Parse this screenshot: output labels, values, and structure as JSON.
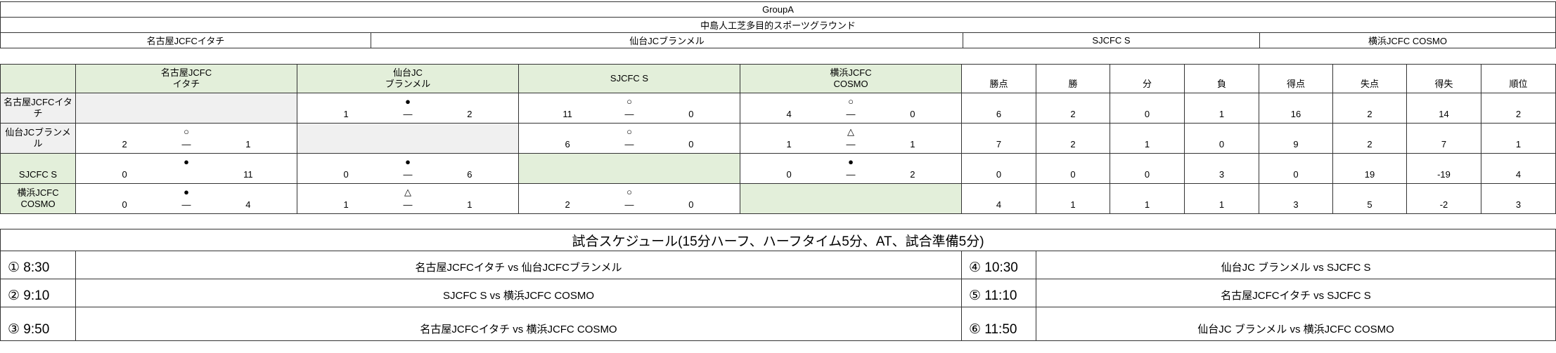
{
  "group": "GroupA",
  "venue": "中島人工芝多目的スポーツグラウンド",
  "teams_header": [
    "名古屋JCFCイタチ",
    "仙台JCブランメル",
    "SJCFC S",
    "横浜JCFC COSMO"
  ],
  "grid": {
    "col_teams": [
      [
        "名古屋JCFC",
        "イタチ"
      ],
      [
        "仙台JC",
        "ブランメル"
      ],
      [
        "",
        "SJCFC S"
      ],
      [
        "横浜JCFC",
        "COSMO"
      ]
    ],
    "stat_headers": [
      "勝点",
      "勝",
      "分",
      "負",
      "得点",
      "失点",
      "得失",
      "順位"
    ],
    "rows": [
      {
        "name": "名古屋JCFCイタチ",
        "results": [
          null,
          {
            "l": "1",
            "m": "●",
            "d": "—",
            "r": "2"
          },
          {
            "l": "11",
            "m": "○",
            "d": "—",
            "r": "0"
          },
          {
            "l": "4",
            "m": "○",
            "d": "—",
            "r": "0"
          }
        ],
        "stats": [
          "6",
          "2",
          "0",
          "1",
          "16",
          "2",
          "14",
          "2"
        ]
      },
      {
        "name": "仙台JCブランメル",
        "results": [
          {
            "l": "2",
            "m": "○",
            "d": "—",
            "r": "1"
          },
          null,
          {
            "l": "6",
            "m": "○",
            "d": "—",
            "r": "0"
          },
          {
            "l": "1",
            "m": "△",
            "d": "—",
            "r": "1"
          }
        ],
        "stats": [
          "7",
          "2",
          "1",
          "0",
          "9",
          "2",
          "7",
          "1"
        ]
      },
      {
        "name": "SJCFC S",
        "results": [
          {
            "l": "0",
            "m": "●",
            "d": "",
            "r": "11"
          },
          {
            "l": "0",
            "m": "●",
            "d": "—",
            "r": "6"
          },
          null,
          {
            "l": "0",
            "m": "●",
            "d": "—",
            "r": "2"
          }
        ],
        "stats": [
          "0",
          "0",
          "0",
          "3",
          "0",
          "19",
          "-19",
          "4"
        ]
      },
      {
        "name": "横浜JCFC COSMO",
        "results": [
          {
            "l": "0",
            "m": "●",
            "d": "—",
            "r": "4"
          },
          {
            "l": "1",
            "m": "△",
            "d": "—",
            "r": "1"
          },
          {
            "l": "2",
            "m": "○",
            "d": "—",
            "r": "0"
          },
          null
        ],
        "stats": [
          "4",
          "1",
          "1",
          "1",
          "3",
          "5",
          "-2",
          "3"
        ]
      }
    ]
  },
  "schedule": {
    "title": "試合スケジュール(15分ハーフ、ハーフタイム5分、AT、試合準備5分)",
    "rows": [
      {
        "t1": "① 8:30",
        "m1": "名古屋JCFCイタチ vs 仙台JCFCブランメル",
        "t2": "④ 10:30",
        "m2": "仙台JC ブランメル vs SJCFC S"
      },
      {
        "t1": "② 9:10",
        "m1": "SJCFC S vs 横浜JCFC COSMO",
        "t2": "⑤ 11:10",
        "m2": "名古屋JCFCイタチ vs SJCFC S"
      },
      {
        "t1": "③ 9:50",
        "m1": "名古屋JCFCイタチ vs 横浜JCFC COSMO",
        "t2": "⑥ 11:50",
        "m2": "仙台JC ブランメル vs 横浜JCFC COSMO"
      }
    ]
  },
  "colors": {
    "header_bg": "#e3efda",
    "self_cell_bg": "#f0f0f0"
  }
}
